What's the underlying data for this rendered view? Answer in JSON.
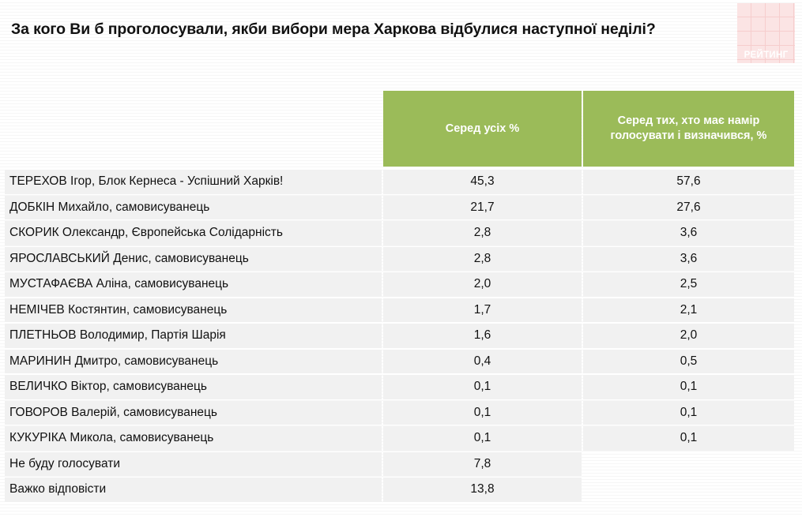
{
  "title": "За кого Ви б проголосували, якби вибори мера Харкова відбулися наступної неділі?",
  "logo_text": "РЕЙТИНГ",
  "colors": {
    "header_bg": "#9bbb59",
    "row_bg": "#f1f1f1",
    "logo_bg": "#fbe4e4"
  },
  "chart_data": {
    "type": "table",
    "title": "За кого Ви б проголосували, якби вибори мера Харкова відбулися наступної неділі?",
    "columns": [
      "Серед усіх %",
      "Серед тих, хто має намір голосувати і визначився, %"
    ],
    "rows": [
      {
        "name": "ТЕРЕХОВ Ігор, Блок Кернеса  - Успішний Харків!",
        "all": "45,3",
        "decided": "57,6"
      },
      {
        "name": "ДОБКІН Михайло, самовисуванець",
        "all": "21,7",
        "decided": "27,6"
      },
      {
        "name": "СКОРИК Олександр, Європейська Солідарність",
        "all": "2,8",
        "decided": "3,6"
      },
      {
        "name": "ЯРОСЛАВСЬКИЙ Денис, самовисуванець",
        "all": "2,8",
        "decided": "3,6"
      },
      {
        "name": "МУСТАФАЄВА Аліна, самовисуванець",
        "all": "2,0",
        "decided": "2,5"
      },
      {
        "name": "НЕМІЧЕВ Костянтин, самовисуванець",
        "all": "1,7",
        "decided": "2,1"
      },
      {
        "name": "ПЛЕТНЬОВ Володимир, Партія Шарія",
        "all": "1,6",
        "decided": "2,0"
      },
      {
        "name": "МАРИНИН Дмитро, самовисуванець",
        "all": "0,4",
        "decided": "0,5"
      },
      {
        "name": "ВЕЛИЧКО Віктор, самовисуванець",
        "all": "0,1",
        "decided": "0,1"
      },
      {
        "name": "ГОВОРОВ Валерій, самовисуванець",
        "all": "0,1",
        "decided": "0,1"
      },
      {
        "name": "КУКУРІКА Микола, самовисуванець",
        "all": "0,1",
        "decided": "0,1"
      },
      {
        "name": "Не буду голосувати",
        "all": "7,8",
        "decided": null
      },
      {
        "name": "Важко відповісти",
        "all": "13,8",
        "decided": null
      }
    ]
  }
}
